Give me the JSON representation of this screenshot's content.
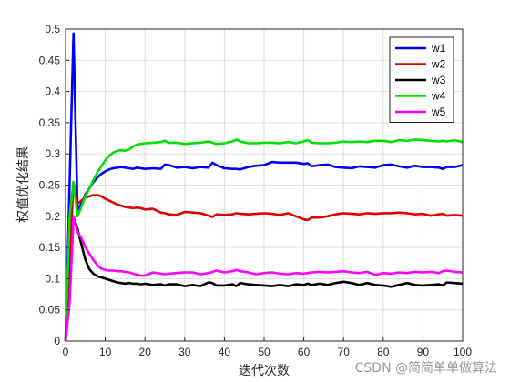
{
  "chart_data": {
    "type": "line",
    "title": "",
    "xlabel": "迭代次数",
    "ylabel": "权值优化结果",
    "xlim": [
      0,
      100
    ],
    "ylim": [
      0,
      0.5
    ],
    "xticks": [
      "0",
      "10",
      "20",
      "30",
      "40",
      "50",
      "60",
      "70",
      "80",
      "90",
      "100"
    ],
    "yticks": [
      "0",
      "0.05",
      "0.1",
      "0.15",
      "0.2",
      "0.25",
      "0.3",
      "0.35",
      "0.4",
      "0.45",
      "0.5"
    ],
    "grid": true,
    "legend_position": "top-right",
    "x": [
      0,
      1,
      2,
      3,
      4,
      5,
      6,
      7,
      8,
      9,
      10,
      11,
      12,
      13,
      14,
      15,
      16,
      17,
      18,
      19,
      20,
      22,
      24,
      25,
      26,
      28,
      30,
      32,
      34,
      36,
      37,
      38,
      40,
      42,
      43,
      44,
      46,
      48,
      50,
      52,
      54,
      56,
      58,
      60,
      61,
      62,
      64,
      66,
      68,
      70,
      72,
      74,
      76,
      78,
      80,
      82,
      84,
      86,
      88,
      90,
      92,
      94,
      95,
      96,
      98,
      100
    ],
    "series": [
      {
        "name": "w1",
        "color": "#0000ff",
        "values": [
          0,
          0.25,
          0.493,
          0.21,
          0.22,
          0.235,
          0.245,
          0.255,
          0.262,
          0.268,
          0.272,
          0.275,
          0.277,
          0.278,
          0.279,
          0.278,
          0.277,
          0.276,
          0.278,
          0.277,
          0.276,
          0.277,
          0.276,
          0.283,
          0.282,
          0.278,
          0.279,
          0.277,
          0.279,
          0.278,
          0.286,
          0.282,
          0.277,
          0.276,
          0.276,
          0.275,
          0.279,
          0.281,
          0.282,
          0.287,
          0.286,
          0.286,
          0.286,
          0.284,
          0.285,
          0.28,
          0.282,
          0.283,
          0.279,
          0.278,
          0.277,
          0.28,
          0.279,
          0.278,
          0.282,
          0.283,
          0.28,
          0.278,
          0.281,
          0.279,
          0.279,
          0.278,
          0.276,
          0.279,
          0.279,
          0.282
        ]
      },
      {
        "name": "w2",
        "color": "#e00000",
        "values": [
          0,
          0.13,
          0.255,
          0.22,
          0.225,
          0.23,
          0.232,
          0.234,
          0.234,
          0.232,
          0.228,
          0.225,
          0.222,
          0.219,
          0.217,
          0.215,
          0.214,
          0.213,
          0.214,
          0.213,
          0.211,
          0.212,
          0.206,
          0.205,
          0.203,
          0.202,
          0.207,
          0.206,
          0.205,
          0.201,
          0.199,
          0.203,
          0.202,
          0.203,
          0.205,
          0.204,
          0.203,
          0.204,
          0.205,
          0.204,
          0.202,
          0.205,
          0.2,
          0.195,
          0.194,
          0.198,
          0.198,
          0.2,
          0.203,
          0.205,
          0.204,
          0.203,
          0.205,
          0.204,
          0.205,
          0.205,
          0.206,
          0.205,
          0.203,
          0.204,
          0.201,
          0.203,
          0.204,
          0.201,
          0.202,
          0.201
        ]
      },
      {
        "name": "w3",
        "color": "#000000",
        "values": [
          0,
          0.07,
          0.2,
          0.18,
          0.155,
          0.13,
          0.115,
          0.108,
          0.104,
          0.102,
          0.1,
          0.098,
          0.096,
          0.094,
          0.093,
          0.092,
          0.093,
          0.092,
          0.092,
          0.091,
          0.092,
          0.09,
          0.091,
          0.089,
          0.091,
          0.091,
          0.088,
          0.09,
          0.088,
          0.094,
          0.093,
          0.089,
          0.089,
          0.091,
          0.088,
          0.093,
          0.091,
          0.09,
          0.089,
          0.088,
          0.09,
          0.088,
          0.091,
          0.09,
          0.092,
          0.09,
          0.092,
          0.09,
          0.093,
          0.095,
          0.093,
          0.09,
          0.093,
          0.09,
          0.089,
          0.087,
          0.09,
          0.093,
          0.09,
          0.089,
          0.09,
          0.091,
          0.089,
          0.094,
          0.093,
          0.092
        ]
      },
      {
        "name": "w4",
        "color": "#00e000",
        "values": [
          0,
          0.2,
          0.255,
          0.2,
          0.215,
          0.232,
          0.245,
          0.258,
          0.27,
          0.28,
          0.29,
          0.297,
          0.302,
          0.305,
          0.306,
          0.305,
          0.307,
          0.312,
          0.315,
          0.316,
          0.317,
          0.318,
          0.319,
          0.321,
          0.318,
          0.318,
          0.316,
          0.317,
          0.318,
          0.32,
          0.318,
          0.316,
          0.317,
          0.32,
          0.323,
          0.32,
          0.317,
          0.317,
          0.318,
          0.318,
          0.317,
          0.319,
          0.317,
          0.32,
          0.322,
          0.318,
          0.317,
          0.317,
          0.318,
          0.32,
          0.319,
          0.32,
          0.319,
          0.321,
          0.321,
          0.319,
          0.322,
          0.321,
          0.323,
          0.322,
          0.321,
          0.32,
          0.321,
          0.32,
          0.322,
          0.319
        ]
      },
      {
        "name": "w5",
        "color": "#ff00ff",
        "values": [
          0,
          0.06,
          0.2,
          0.175,
          0.165,
          0.15,
          0.14,
          0.13,
          0.122,
          0.116,
          0.114,
          0.113,
          0.113,
          0.112,
          0.112,
          0.111,
          0.11,
          0.108,
          0.106,
          0.105,
          0.105,
          0.11,
          0.108,
          0.107,
          0.108,
          0.109,
          0.11,
          0.11,
          0.107,
          0.109,
          0.111,
          0.113,
          0.11,
          0.112,
          0.114,
          0.112,
          0.11,
          0.107,
          0.109,
          0.11,
          0.108,
          0.107,
          0.109,
          0.108,
          0.109,
          0.11,
          0.111,
          0.11,
          0.111,
          0.112,
          0.11,
          0.109,
          0.111,
          0.106,
          0.109,
          0.108,
          0.11,
          0.109,
          0.111,
          0.11,
          0.111,
          0.109,
          0.112,
          0.113,
          0.111,
          0.11
        ]
      }
    ]
  },
  "watermark": "CSDN @简简单单做算法"
}
